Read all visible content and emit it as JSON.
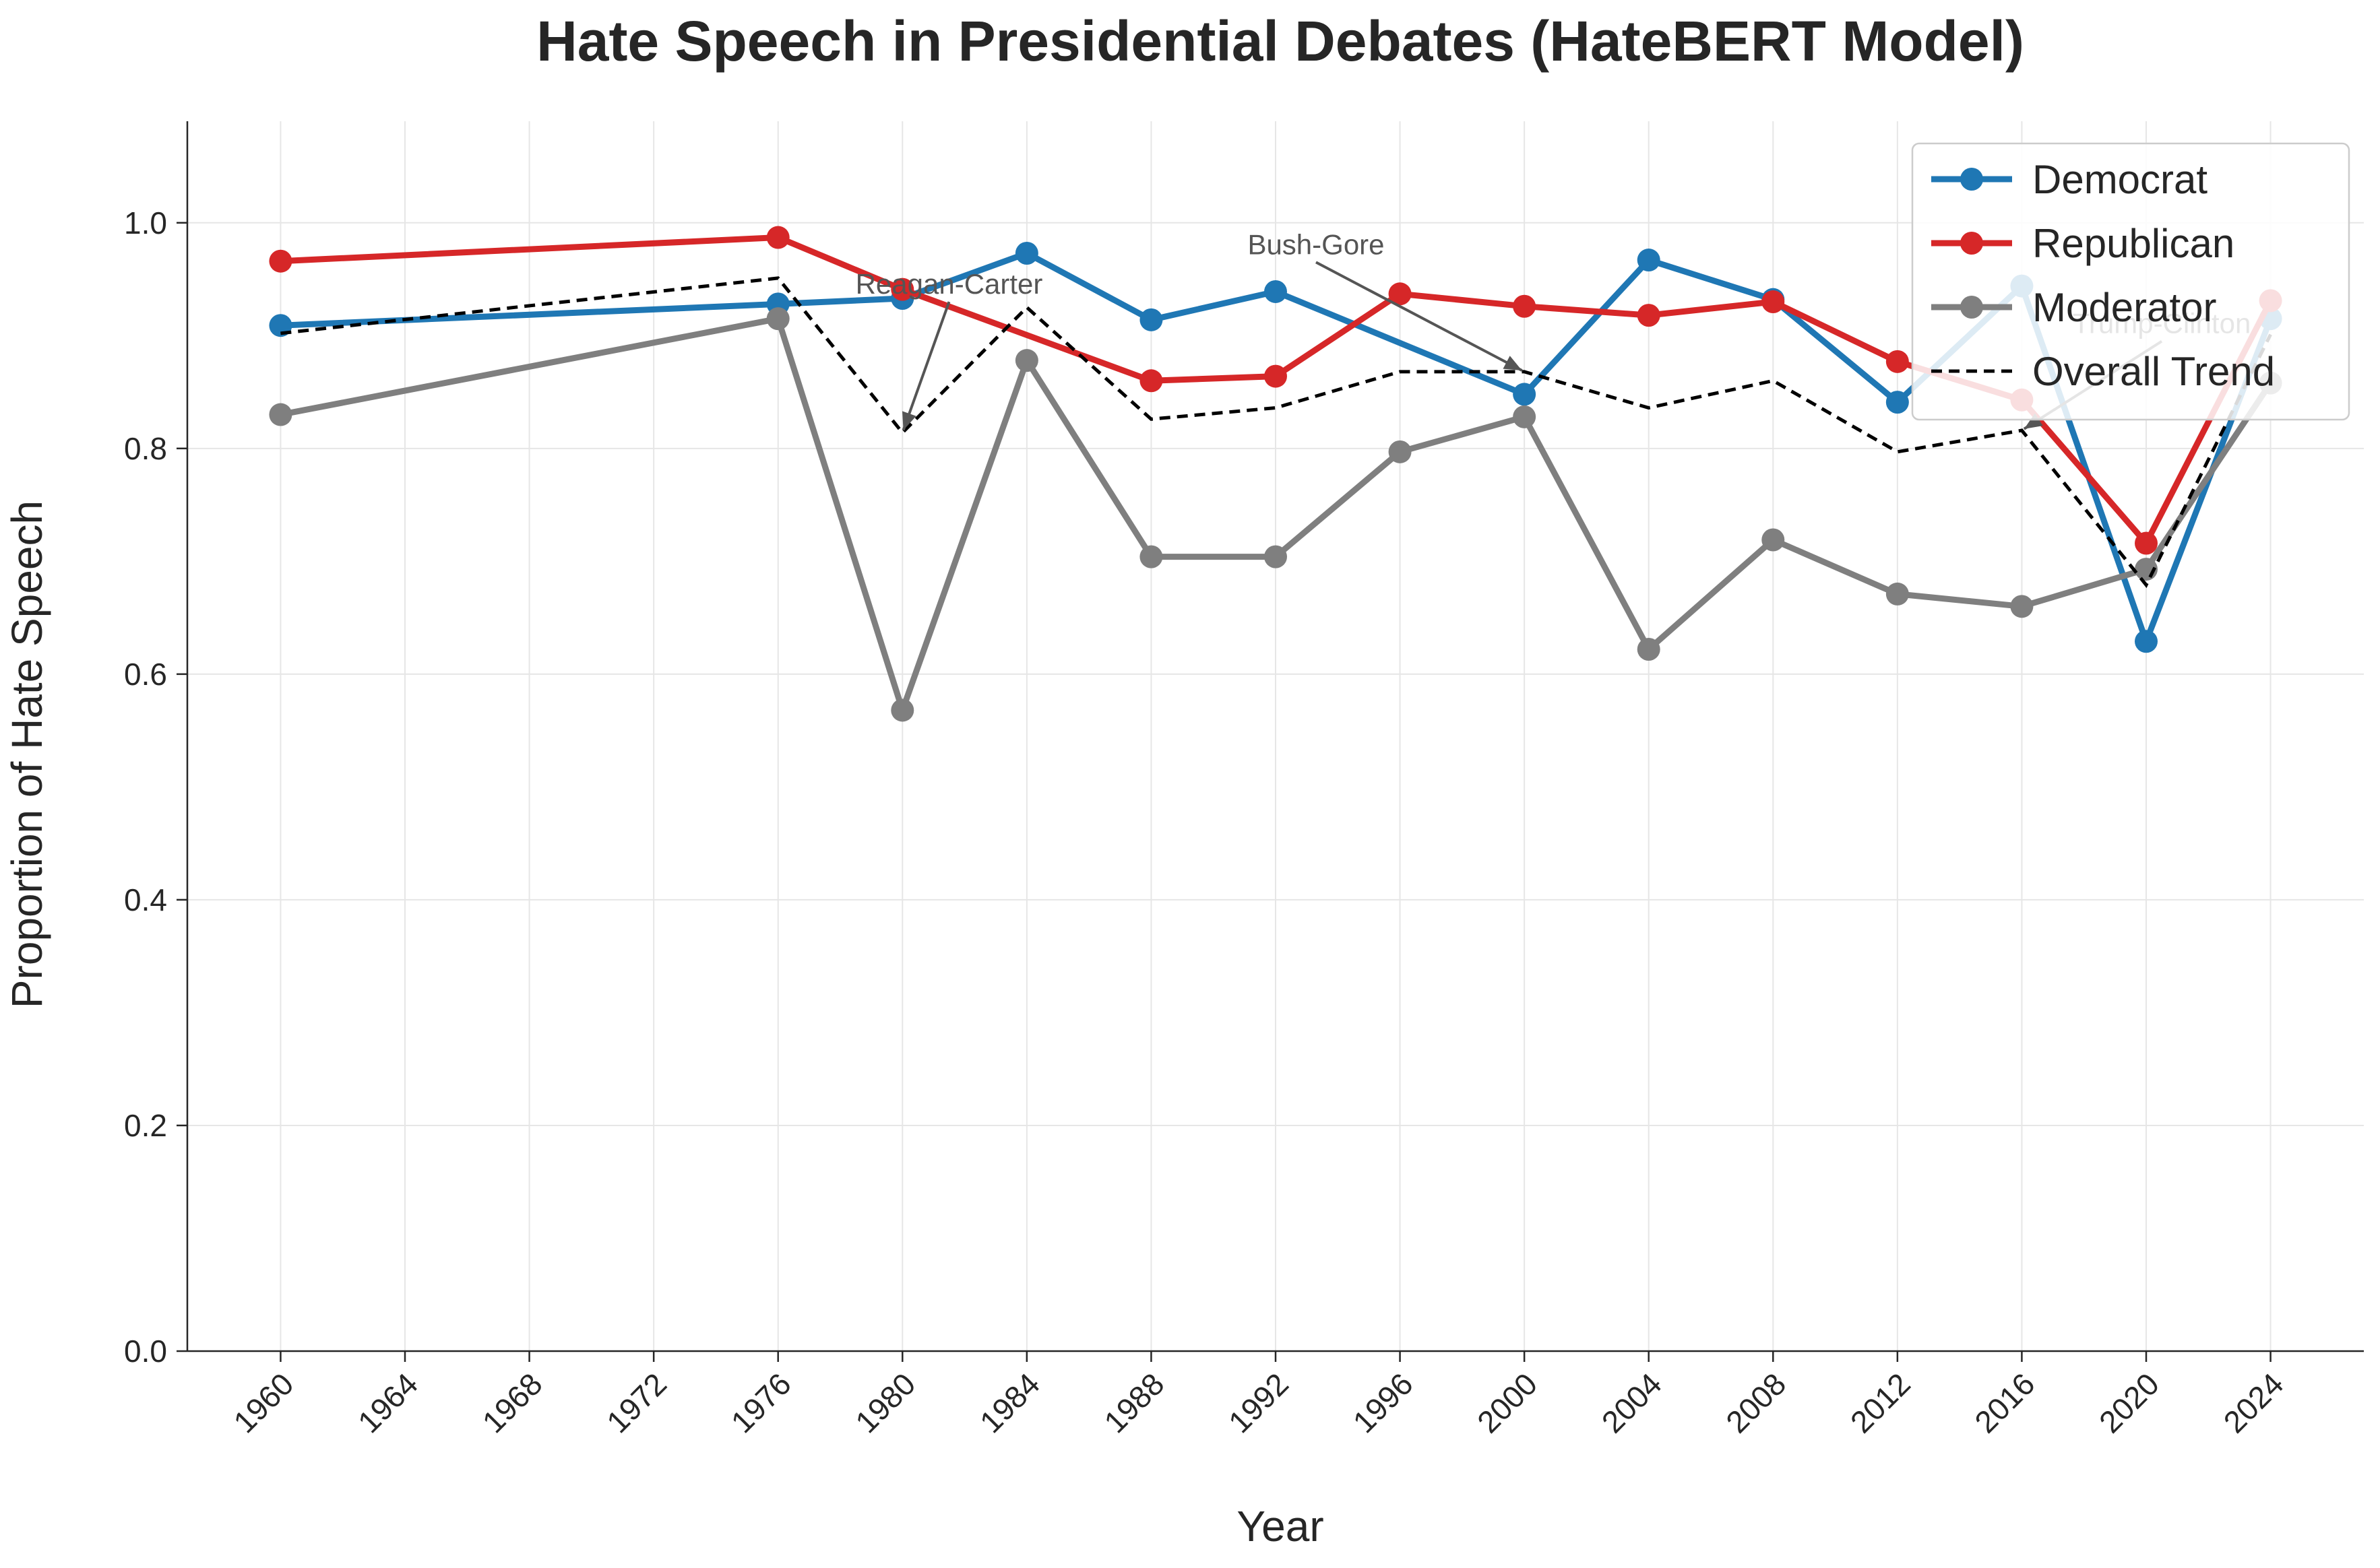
{
  "chart_data": {
    "type": "line",
    "title": "Hate Speech in Presidential Debates (HateBERT Model)",
    "xlabel": "Year",
    "ylabel": "Proportion of Hate Speech",
    "xlim": [
      1957,
      2027
    ],
    "ylim": [
      0,
      1.09
    ],
    "x_ticks": [
      1960,
      1964,
      1968,
      1972,
      1976,
      1980,
      1984,
      1988,
      1992,
      1996,
      2000,
      2004,
      2008,
      2012,
      2016,
      2020,
      2024
    ],
    "y_ticks": [
      0.0,
      0.2,
      0.4,
      0.6,
      0.8,
      1.0
    ],
    "y_tick_labels": [
      "0.0",
      "0.2",
      "0.4",
      "0.6",
      "0.8",
      "1.0"
    ],
    "grid": true,
    "legend_position": "top-right",
    "x": [
      1960,
      1976,
      1980,
      1984,
      1988,
      1992,
      1996,
      2000,
      2004,
      2008,
      2012,
      2016,
      2020,
      2024
    ],
    "series": [
      {
        "name": "Democrat",
        "color": "#1f77b4",
        "style": "solid-marker",
        "values": [
          0.909,
          0.928,
          0.933,
          0.973,
          0.914,
          0.939,
          null,
          0.848,
          0.967,
          0.932,
          0.841,
          0.944,
          0.629,
          0.915
        ]
      },
      {
        "name": "Republican",
        "color": "#d62728",
        "style": "solid-marker",
        "values": [
          0.966,
          0.987,
          0.941,
          null,
          0.86,
          0.864,
          0.937,
          0.926,
          0.918,
          0.93,
          0.877,
          0.843,
          0.716,
          0.931
        ]
      },
      {
        "name": "Moderator",
        "color": "#7f7f7f",
        "style": "solid-marker",
        "values": [
          0.83,
          0.915,
          0.568,
          0.878,
          0.704,
          0.704,
          0.797,
          0.828,
          0.622,
          0.719,
          0.671,
          0.66,
          0.693,
          0.858
        ]
      },
      {
        "name": "Overall Trend",
        "color": "#000000",
        "style": "dashed",
        "values": [
          0.902,
          0.951,
          0.814,
          0.925,
          0.826,
          0.836,
          0.868,
          0.868,
          0.836,
          0.86,
          0.797,
          0.816,
          0.679,
          0.901
        ]
      }
    ],
    "annotations": [
      {
        "text": "Reagan-Carter",
        "x": 1980,
        "y": 0.814,
        "text_x": 1981.5,
        "text_y": 0.93
      },
      {
        "text": "Bush-Gore",
        "x": 2000,
        "y": 0.868,
        "text_x": 1993.3,
        "text_y": 0.965
      },
      {
        "text": "Trump-Clinton",
        "x": 2016,
        "y": 0.816,
        "text_x": 2020.5,
        "text_y": 0.895
      }
    ]
  }
}
